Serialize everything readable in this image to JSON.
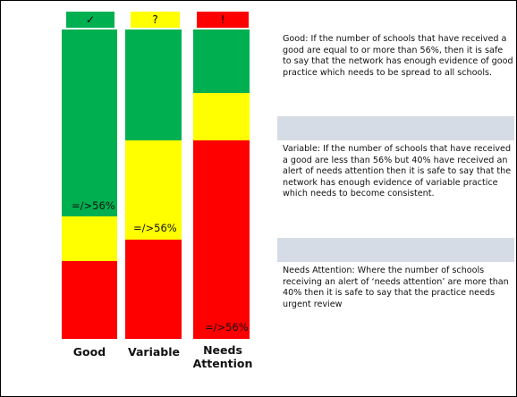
{
  "colors": {
    "green": "#00b050",
    "yellow": "#ffff00",
    "red": "#ff0000",
    "band": "#d6dce6"
  },
  "columns": [
    {
      "icon_name": "check-icon",
      "icon": "✓",
      "label": "Good",
      "threshold": "=/>56%",
      "tag_color": "#00b050"
    },
    {
      "icon_name": "question-icon",
      "icon": "?",
      "label": "Variable",
      "threshold": "=/>56%",
      "tag_color": "#ffff00"
    },
    {
      "icon_name": "exclamation-icon",
      "icon": "!",
      "label": "Needs\nAttention",
      "threshold": "=/>56%",
      "tag_color": "#ff0000"
    }
  ],
  "descriptions": {
    "good": "Good: If the number of schools that have received a good are equal to or more than 56%, then it is safe to say that the network has enough evidence of good practice which needs to be spread to all schools.",
    "variable": "Variable: If the number of schools that have received a good are less than 56% but 40% have received an alert of needs attention then it is safe to say that the network has enough evidence of variable practice which needs to become consistent.",
    "needs_attention": "Needs Attention: Where the number of schools receiving an alert of ‘needs attention’ are more than 40% then it is safe to say that the practice needs urgent review"
  }
}
